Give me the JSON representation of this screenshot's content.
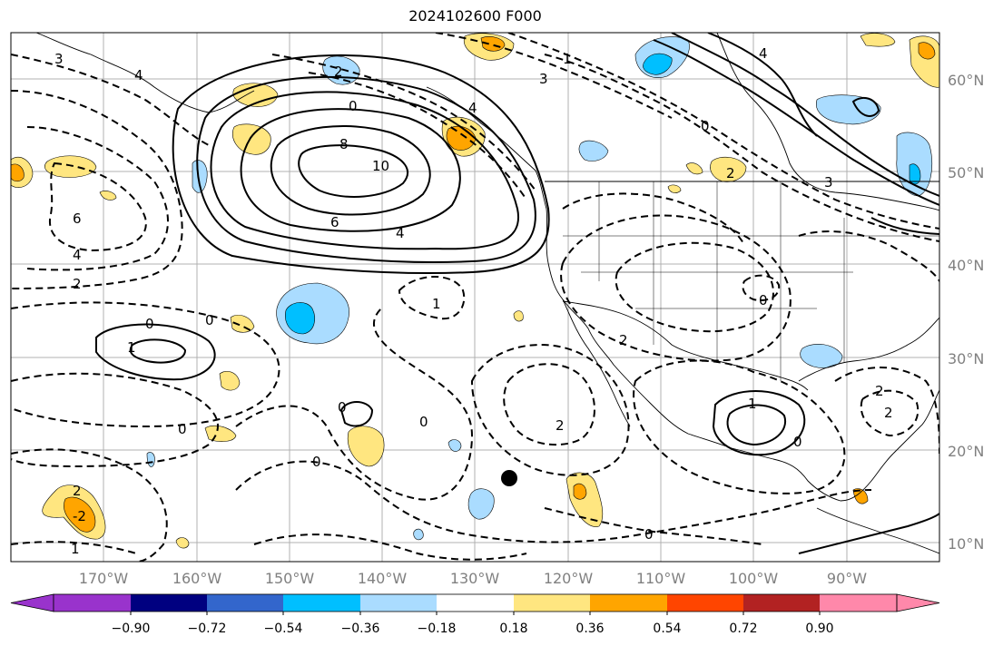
{
  "title": "2024102600 F000",
  "lat_labels": [
    "60°N",
    "50°N",
    "40°N",
    "30°N",
    "20°N",
    "10°N"
  ],
  "lon_labels": [
    "170°W",
    "160°W",
    "150°W",
    "140°W",
    "130°W",
    "120°W",
    "110°W",
    "100°W",
    "90°W"
  ],
  "colorbar": {
    "colors": [
      "#9933cc",
      "#000080",
      "#3366cc",
      "#00bfff",
      "#aadcff",
      "#ffffff",
      "#ffe680",
      "#ffa500",
      "#ff4500",
      "#b22222",
      "#ff88aa"
    ],
    "tick_labels": [
      "−0.90",
      "−0.72",
      "−0.54",
      "−0.36",
      "−0.18",
      "0.18",
      "0.36",
      "0.54",
      "0.72",
      "0.90"
    ]
  },
  "contour_labels": [
    "3",
    "4",
    "0",
    "2",
    "4",
    "8",
    "10",
    "6",
    "4",
    "6",
    "4",
    "2",
    "1",
    "0",
    "0",
    "1",
    "0",
    "0",
    "0",
    "0",
    "2",
    "-2",
    "1",
    "0",
    "2",
    "0",
    "1",
    "0",
    "2",
    "3",
    "4",
    "0",
    "2",
    "3",
    "2",
    "2",
    "1"
  ]
}
